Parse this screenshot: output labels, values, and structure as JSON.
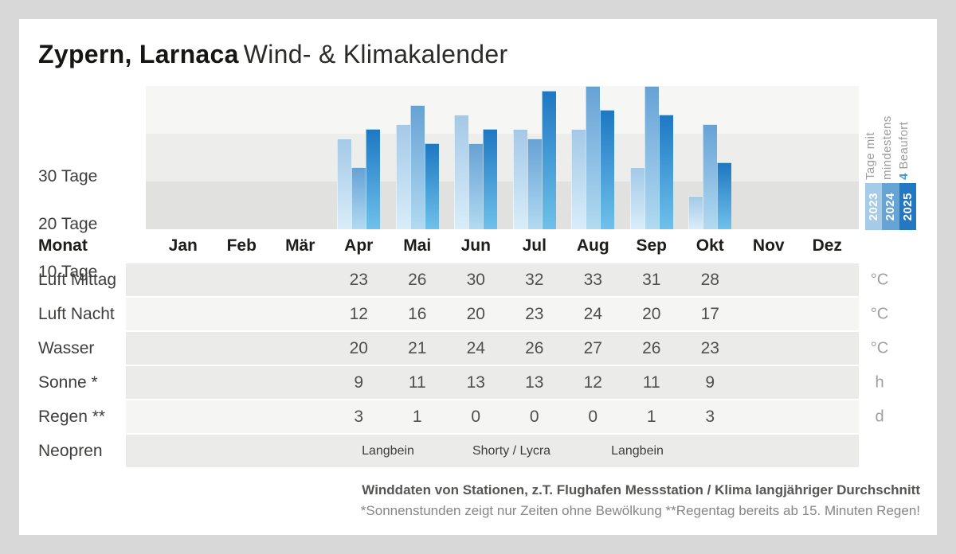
{
  "header": {
    "location": "Zypern, Larnaca",
    "subtitle": "Wind- & Klimakalender"
  },
  "side": {
    "line1": "Tage mit",
    "line2": "mindestens",
    "line3_value": "4",
    "line3_rest": " Beaufort",
    "accent_color": "#4596d2"
  },
  "chart_data": {
    "type": "bar",
    "title": "Tage mit mindestens 4 Beaufort",
    "categories": [
      "Jan",
      "Feb",
      "Mär",
      "Apr",
      "Mai",
      "Jun",
      "Jul",
      "Aug",
      "Sep",
      "Okt",
      "Nov",
      "Dez"
    ],
    "series": [
      {
        "name": "2023",
        "color": "#a6cbe8",
        "color_top": "#a4c9e7",
        "color_bottom": "#d9edf9",
        "values": [
          null,
          null,
          null,
          19,
          22,
          24,
          21,
          21,
          13,
          7,
          null,
          null
        ]
      },
      {
        "name": "2024",
        "color": "#66a4d6",
        "color_top": "#66a2d5",
        "color_bottom": "#b2daf1",
        "values": [
          null,
          null,
          null,
          13,
          26,
          18,
          19,
          30,
          30,
          22,
          null,
          null
        ]
      },
      {
        "name": "2025",
        "color": "#2478c1",
        "color_top": "#1e78c2",
        "color_bottom": "#6fc1ea",
        "values": [
          null,
          null,
          null,
          21,
          18,
          21,
          29,
          25,
          24,
          14,
          null,
          null
        ]
      }
    ],
    "yticks": [
      "30 Tage",
      "20 Tage",
      "10 Tage"
    ],
    "ylim": [
      0,
      30
    ],
    "unit": "Tage",
    "legend_position": "right",
    "grid": "horizontal-bands"
  },
  "table": {
    "month_header_label": "Monat",
    "months": [
      "Jan",
      "Feb",
      "Mär",
      "Apr",
      "Mai",
      "Jun",
      "Jul",
      "Aug",
      "Sep",
      "Okt",
      "Nov",
      "Dez"
    ],
    "rows": [
      {
        "label": "Luft Mittag",
        "unit": "°C",
        "values": [
          "",
          "",
          "",
          "23",
          "26",
          "30",
          "32",
          "33",
          "31",
          "28",
          "",
          ""
        ]
      },
      {
        "label": "Luft Nacht",
        "unit": "°C",
        "values": [
          "",
          "",
          "",
          "12",
          "16",
          "20",
          "23",
          "24",
          "20",
          "17",
          "",
          ""
        ]
      },
      {
        "label": "Wasser",
        "unit": "°C",
        "values": [
          "",
          "",
          "",
          "20",
          "21",
          "24",
          "26",
          "27",
          "26",
          "23",
          "",
          ""
        ]
      },
      {
        "label": "Sonne *",
        "unit": "h",
        "values": [
          "",
          "",
          "",
          "9",
          "11",
          "13",
          "13",
          "12",
          "11",
          "9",
          "",
          ""
        ]
      },
      {
        "label": "Regen **",
        "unit": "d",
        "values": [
          "",
          "",
          "",
          "3",
          "1",
          "0",
          "0",
          "0",
          "1",
          "3",
          "",
          ""
        ]
      }
    ],
    "neopren": {
      "label": "Neopren",
      "segments": [
        "Langbein",
        "Shorty / Lycra",
        "Langbein"
      ]
    }
  },
  "footer": {
    "line1": "Winddaten von Stationen, z.T. Flughafen Messstation / Klima langjähriger Durchschnitt",
    "line2": "*Sonnenstunden zeigt nur Zeiten ohne Bewölkung  **Regentag bereits ab 15. Minuten Regen!"
  }
}
